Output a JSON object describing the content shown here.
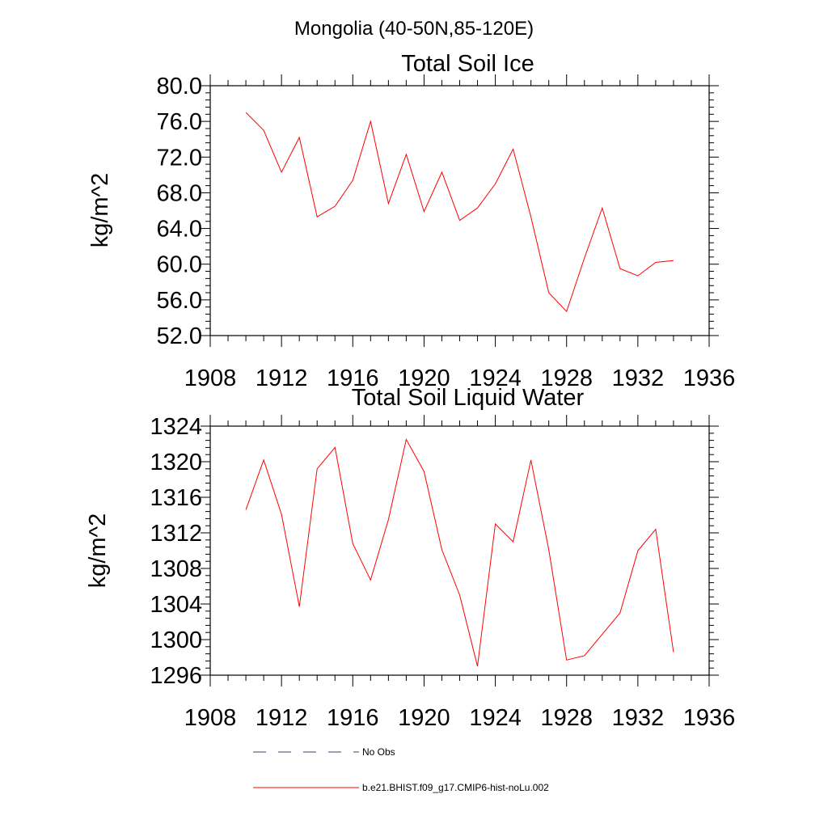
{
  "suptitle": "Mongolia (40-50N,85-120E)",
  "colors": {
    "model": "#ff0000",
    "obs": "#3c3c6e",
    "axis": "#000000"
  },
  "legend": [
    {
      "label": "No Obs",
      "style": "dashed",
      "color": "#3c3c6e"
    },
    {
      "label": "b.e21.BHIST.f09_g17.CMIP6-hist-noLu.002",
      "style": "solid",
      "color": "#ff0000"
    }
  ],
  "chart_data": [
    {
      "type": "line",
      "title": "Total Soil Ice",
      "ylabel": "kg/m^2",
      "xlim": [
        1908,
        1936
      ],
      "ylim": [
        52,
        80
      ],
      "xticks": [
        1908,
        1912,
        1916,
        1920,
        1924,
        1928,
        1932,
        1936
      ],
      "yticks": [
        "52.0",
        "56.0",
        "60.0",
        "64.0",
        "68.0",
        "72.0",
        "76.0",
        "80.0"
      ],
      "x": [
        1910,
        1911,
        1912,
        1913,
        1914,
        1915,
        1916,
        1917,
        1918,
        1919,
        1920,
        1921,
        1922,
        1923,
        1924,
        1925,
        1926,
        1927,
        1928,
        1929,
        1930,
        1931,
        1932,
        1933,
        1934
      ],
      "series": [
        {
          "name": "b.e21.BHIST.f09_g17.CMIP6-hist-noLu.002",
          "values": [
            77.0,
            75.0,
            70.3,
            74.2,
            65.3,
            66.5,
            69.4,
            76.0,
            66.8,
            72.3,
            65.9,
            70.3,
            64.9,
            66.3,
            69.0,
            72.9,
            65.3,
            56.8,
            54.7,
            60.7,
            66.3,
            59.5,
            58.7,
            60.2,
            60.4
          ]
        }
      ]
    },
    {
      "type": "line",
      "title": "Total Soil Liquid Water",
      "ylabel": "kg/m^2",
      "xlim": [
        1908,
        1936
      ],
      "ylim": [
        1296,
        1324
      ],
      "xticks": [
        1908,
        1912,
        1916,
        1920,
        1924,
        1928,
        1932,
        1936
      ],
      "yticks": [
        "1296",
        "1300",
        "1304",
        "1308",
        "1312",
        "1316",
        "1320",
        "1324"
      ],
      "x": [
        1910,
        1911,
        1912,
        1913,
        1914,
        1915,
        1916,
        1917,
        1918,
        1919,
        1920,
        1921,
        1922,
        1923,
        1924,
        1925,
        1926,
        1927,
        1928,
        1929,
        1930,
        1931,
        1932,
        1933,
        1934
      ],
      "series": [
        {
          "name": "b.e21.BHIST.f09_g17.CMIP6-hist-noLu.002",
          "values": [
            1314.6,
            1320.2,
            1314.1,
            1303.7,
            1319.2,
            1321.6,
            1310.8,
            1306.7,
            1313.5,
            1322.5,
            1318.9,
            1310.1,
            1305.0,
            1297.0,
            1313.0,
            1311.0,
            1320.2,
            1310.1,
            1297.7,
            1298.2,
            1300.6,
            1303.0,
            1310.0,
            1312.4,
            1298.6
          ]
        }
      ]
    }
  ]
}
